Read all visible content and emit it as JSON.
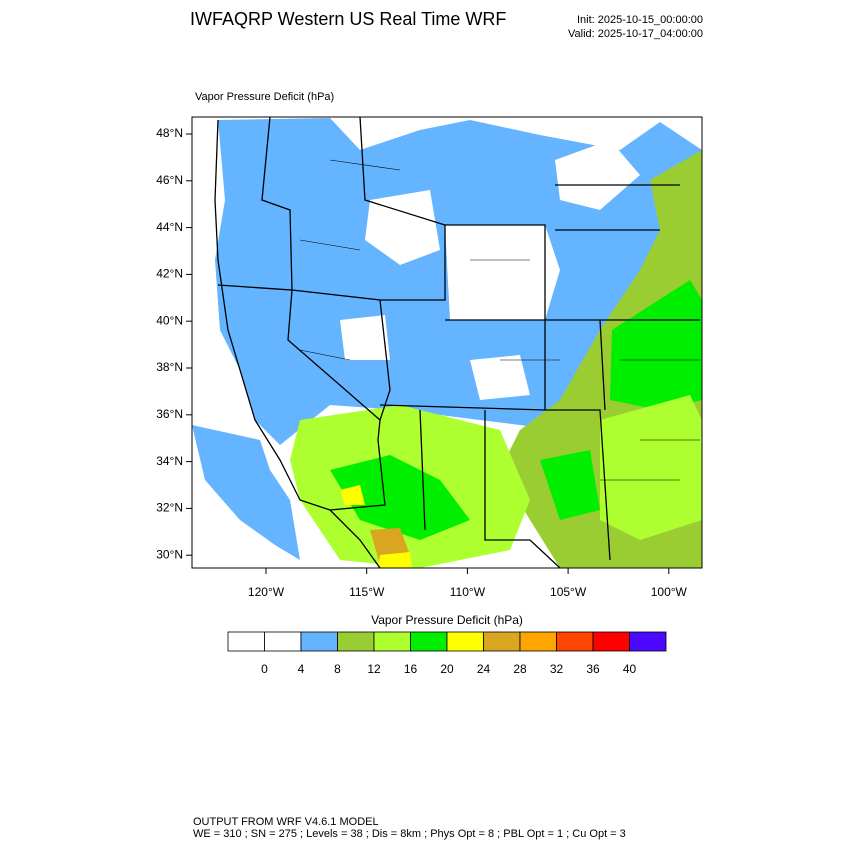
{
  "header": {
    "title": "IWFAQRP Western US Real Time WRF",
    "init": "Init: 2025-10-15_00:00:00",
    "valid": "Valid: 2025-10-17_04:00:00"
  },
  "map": {
    "label": "Vapor Pressure Deficit   (hPa)",
    "lat_labels": [
      "48°N",
      "46°N",
      "44°N",
      "42°N",
      "40°N",
      "38°N",
      "36°N",
      "34°N",
      "32°N",
      "30°N"
    ],
    "lon_labels": [
      "120°W",
      "115°W",
      "110°W",
      "105°W",
      "100°W"
    ]
  },
  "colorbar": {
    "title": "Vapor Pressure Deficit  (hPa)",
    "colors": [
      "#ffffff",
      "#ffffff",
      "#64b4ff",
      "#9acd32",
      "#adff2f",
      "#00ee00",
      "#ffff00",
      "#daa520",
      "#ffa500",
      "#ff4500",
      "#ff0000",
      "#4b0aff"
    ],
    "labels": [
      "0",
      "4",
      "8",
      "12",
      "16",
      "20",
      "24",
      "28",
      "32",
      "36",
      "40"
    ]
  },
  "footer": {
    "line1": "OUTPUT FROM WRF V4.6.1 MODEL",
    "line2": "WE = 310 ; SN = 275 ; Levels = 38 ; Dis = 8km ; Phys Opt = 8 ; PBL Opt = 1 ; Cu Opt = 3"
  }
}
